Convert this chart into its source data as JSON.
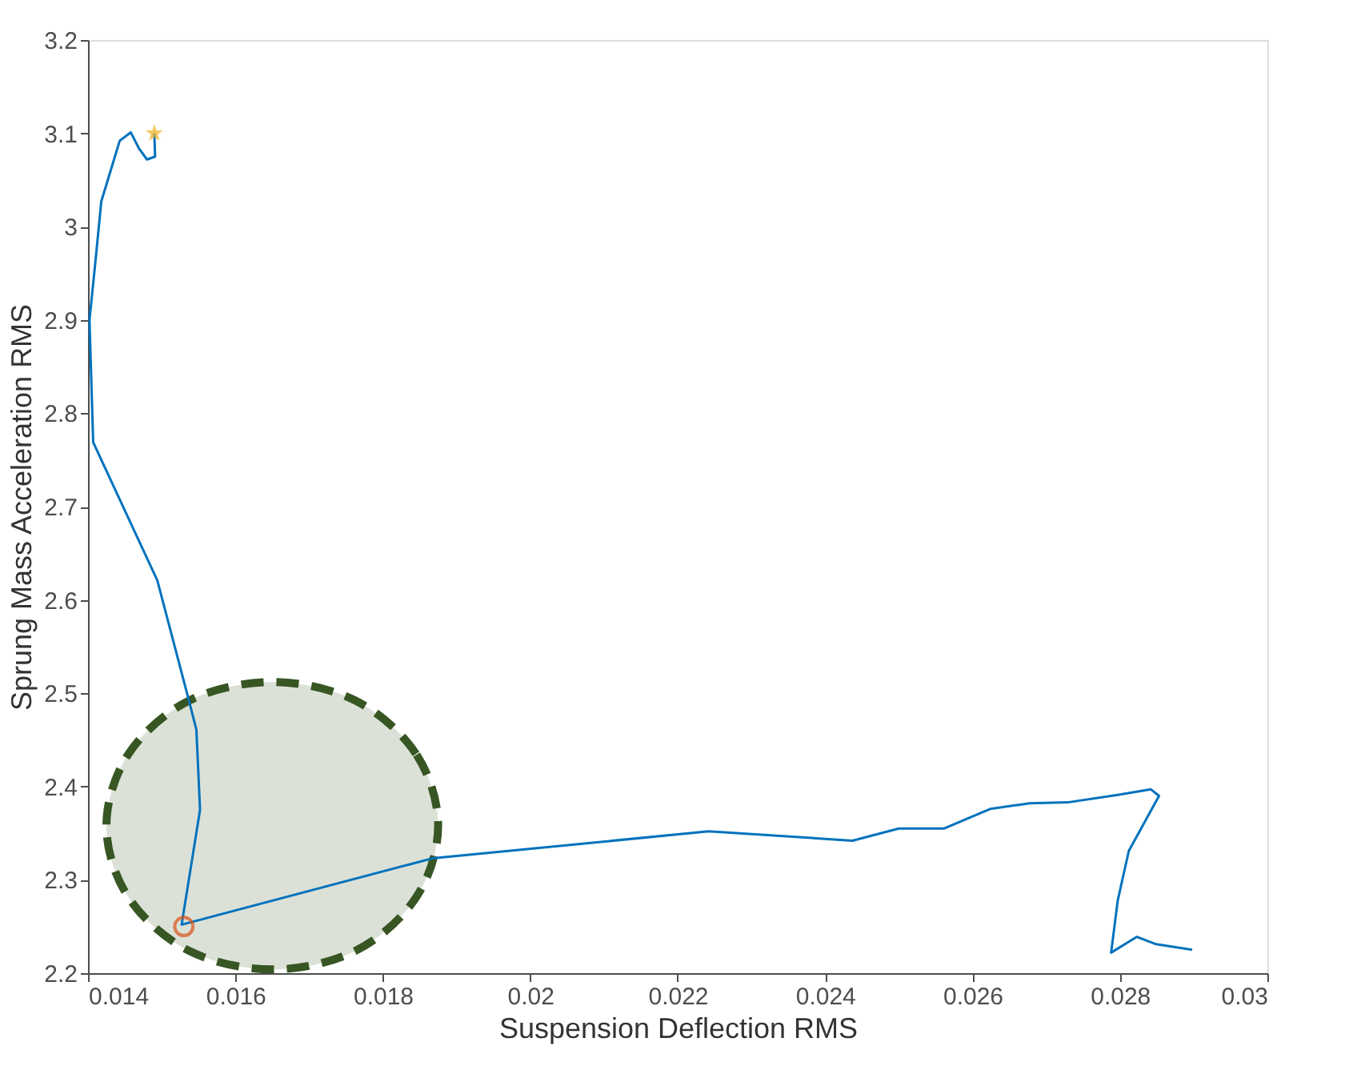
{
  "chart_data": {
    "type": "line",
    "xlabel": "Suspension Deflection RMS",
    "ylabel": "Sprung Mass Acceleration RMS",
    "xlim": [
      0.014,
      0.03
    ],
    "xticks": [
      0.014,
      0.016,
      0.018,
      0.02,
      0.022,
      0.024,
      0.026,
      0.028,
      0.03
    ],
    "ylim": [
      2.2,
      3.2
    ],
    "yticks": [
      2.2,
      2.3,
      2.4,
      2.5,
      2.6,
      2.7,
      2.8,
      2.9,
      3,
      3.1,
      3.2
    ],
    "grid": false,
    "series": [
      {
        "type": "area",
        "color": "#375623",
        "line_style": "dashed",
        "x": [
          0.01875,
          0.01845,
          0.01763,
          0.0165,
          0.01537,
          0.01455,
          0.01425,
          0.01455,
          0.01537,
          0.0165,
          0.01763,
          0.01845
        ],
        "values": [
          2.358,
          2.435,
          2.492,
          2.512,
          2.492,
          2.435,
          2.358,
          2.281,
          2.224,
          2.204,
          2.224,
          2.281
        ]
      },
      {
        "type": "line",
        "color": "#0072bd",
        "line_style": "solid",
        "marker": "none",
        "x": [
          0.0149,
          0.01491,
          0.0148,
          0.01469,
          0.01458,
          0.01443,
          0.01418,
          0.01411,
          0.01402,
          0.01407,
          0.01454,
          0.01494,
          0.01538,
          0.01547,
          0.01552,
          0.01527,
          0.01867,
          0.02242,
          0.02437,
          0.025,
          0.02561,
          0.02624,
          0.02677,
          0.02729,
          0.02797,
          0.02842,
          0.02853,
          0.02812,
          0.02797,
          0.02788,
          0.02823,
          0.02849,
          0.02898
        ],
        "values": [
          3.1,
          3.075,
          3.072,
          3.084,
          3.101,
          3.092,
          3.027,
          2.97,
          2.9,
          2.769,
          2.689,
          2.621,
          2.489,
          2.461,
          2.375,
          2.252,
          2.323,
          2.352,
          2.342,
          2.355,
          2.355,
          2.376,
          2.382,
          2.383,
          2.391,
          2.397,
          2.39,
          2.331,
          2.278,
          2.222,
          2.239,
          2.231,
          2.225
        ]
      },
      {
        "type": "scatter",
        "color": "#d95319",
        "marker": "circle",
        "x": [
          0.0153
        ],
        "values": [
          2.25
        ]
      },
      {
        "type": "scatter",
        "color": "#edb120",
        "marker": "star",
        "x": [
          0.0149
        ],
        "values": [
          3.1
        ]
      }
    ]
  }
}
